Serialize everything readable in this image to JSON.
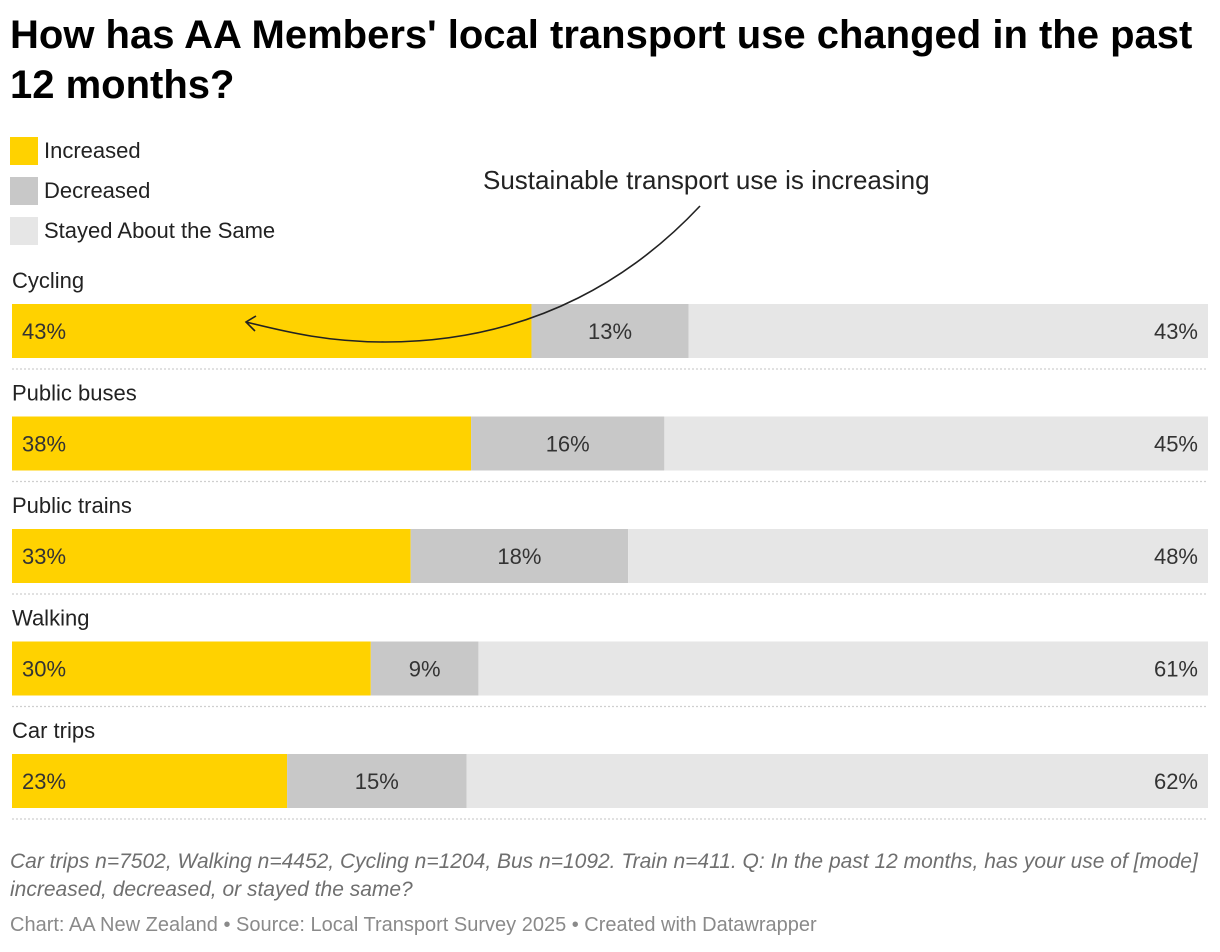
{
  "chart_data": {
    "type": "bar",
    "orientation": "horizontal",
    "stacked": true,
    "title": "How has AA Members' local transport use changed in the past 12 months?",
    "categories": [
      "Cycling",
      "Public buses",
      "Public trains",
      "Walking",
      "Car trips"
    ],
    "series": [
      {
        "name": "Increased",
        "values": [
          43,
          38,
          33,
          30,
          23
        ],
        "color": "#FFD200"
      },
      {
        "name": "Decreased",
        "values": [
          13,
          16,
          18,
          9,
          15
        ],
        "color": "#C8C8C8"
      },
      {
        "name": "Stayed About the Same",
        "values": [
          43,
          45,
          48,
          61,
          62
        ],
        "color": "#E6E6E6"
      }
    ],
    "value_suffix": "%",
    "annotation": "Sustainable transport use is increasing",
    "legend_position": "top-left",
    "notes": "Car trips n=7502, Walking n=4452, Cycling n=1204, Bus n=1092. Train n=411. Q: In the past 12 months, has your use of [mode] increased, decreased, or stayed the same?",
    "credits": "Chart: AA New Zealand • Source: Local Transport Survey 2025 • Created with Datawrapper"
  }
}
